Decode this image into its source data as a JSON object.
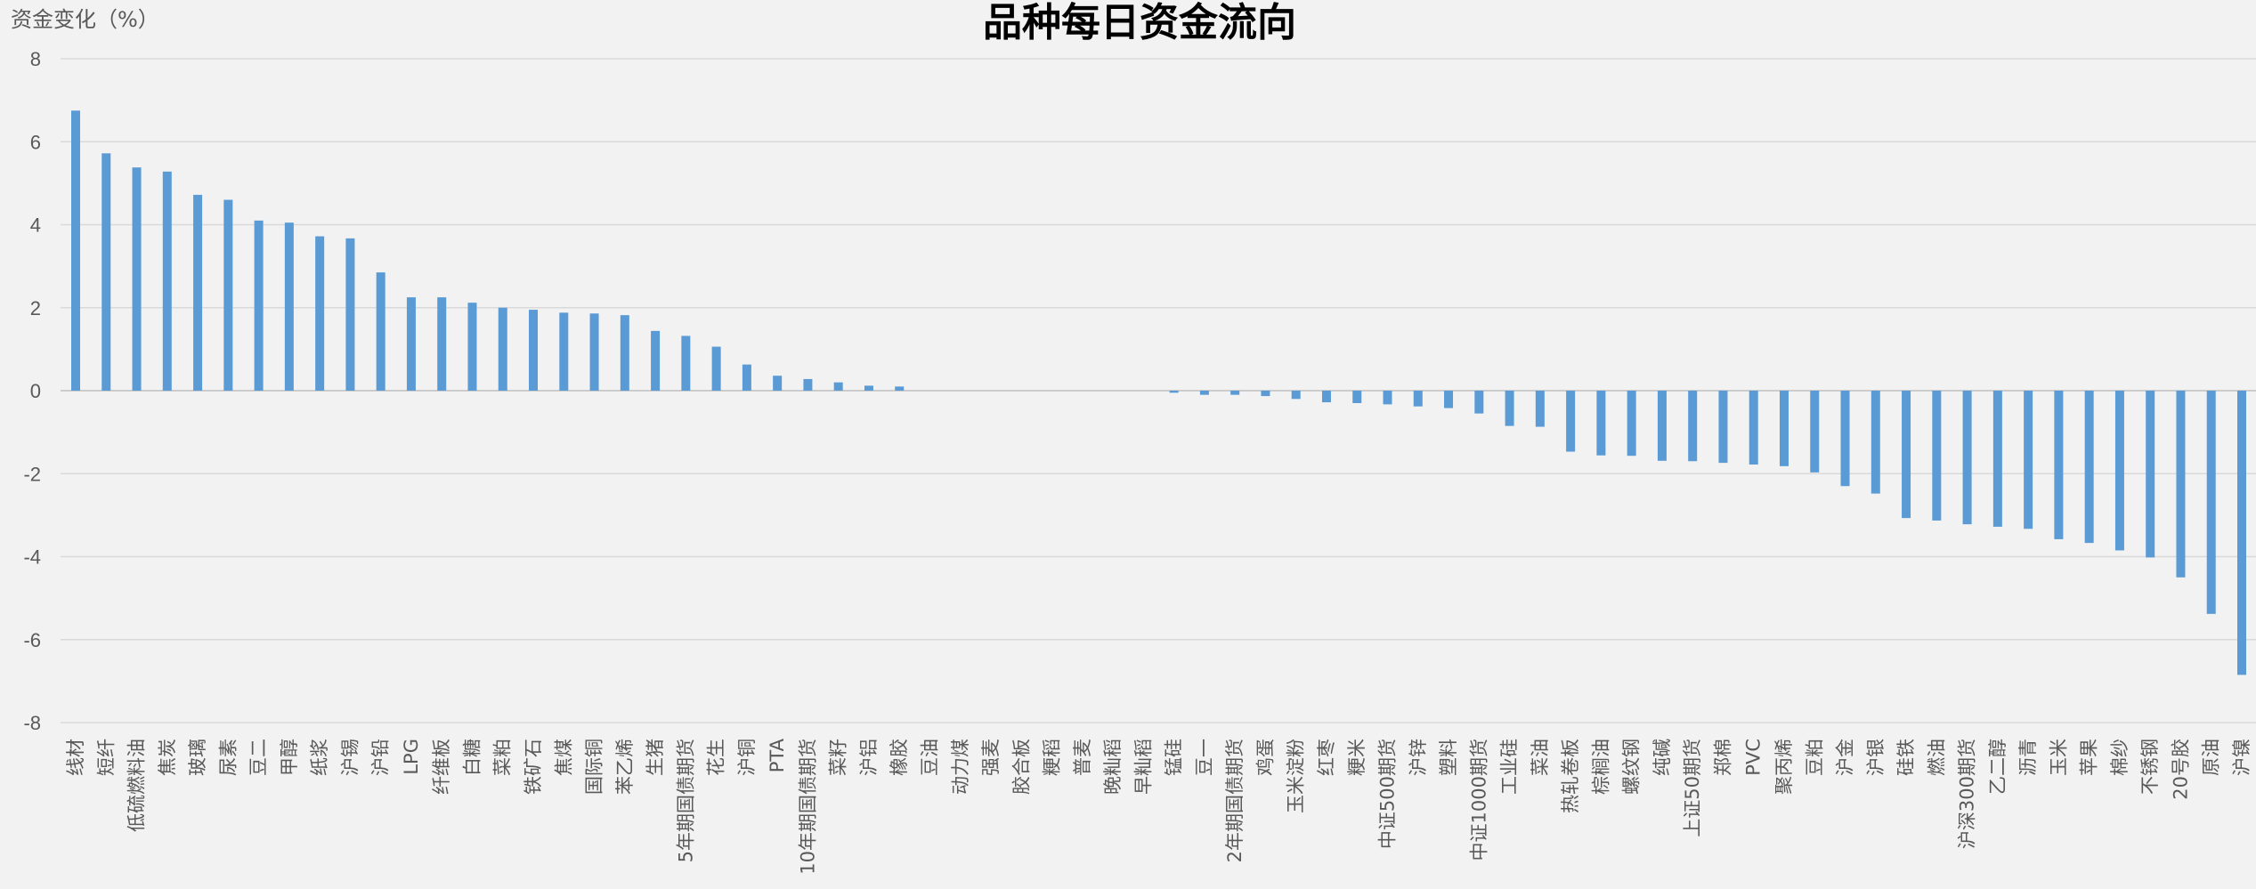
{
  "chart_data": {
    "type": "bar",
    "title": "品种每日资金流向",
    "ylabel": "资金变化（%）",
    "ylim": [
      -8,
      8
    ],
    "yticks": [
      8,
      6,
      4,
      2,
      0,
      -2,
      -4,
      -6,
      -8
    ],
    "grid": true,
    "colors": {
      "bar": "#5b9bd5",
      "background": "#f2f2f2"
    },
    "categories": [
      "线材",
      "短纤",
      "低硫燃料油",
      "焦炭",
      "玻璃",
      "尿素",
      "豆二",
      "甲醇",
      "纸浆",
      "沪锡",
      "沪铅",
      "LPG",
      "纤维板",
      "白糖",
      "菜粕",
      "铁矿石",
      "焦煤",
      "国际铜",
      "苯乙烯",
      "生猪",
      "5年期国债期货",
      "花生",
      "沪铜",
      "PTA",
      "10年期国债期货",
      "菜籽",
      "沪铝",
      "橡胶",
      "豆油",
      "动力煤",
      "强麦",
      "胶合板",
      "粳稻",
      "普麦",
      "晚籼稻",
      "早籼稻",
      "锰硅",
      "豆一",
      "2年期国债期货",
      "鸡蛋",
      "玉米淀粉",
      "红枣",
      "粳米",
      "中证500期货",
      "沪锌",
      "塑料",
      "中证1000期货",
      "工业硅",
      "菜油",
      "热轧卷板",
      "棕榈油",
      "螺纹钢",
      "纯碱",
      "上证50期货",
      "郑棉",
      "PVC",
      "聚丙烯",
      "豆粕",
      "沪金",
      "沪银",
      "硅铁",
      "燃油",
      "沪深300期货",
      "乙二醇",
      "沥青",
      "玉米",
      "苹果",
      "棉纱",
      "不锈钢",
      "20号胶",
      "原油",
      "沪镍"
    ],
    "values": [
      6.75,
      5.72,
      5.38,
      5.28,
      4.72,
      4.6,
      4.1,
      4.05,
      3.72,
      3.67,
      2.85,
      2.25,
      2.25,
      2.12,
      2.0,
      1.95,
      1.88,
      1.86,
      1.82,
      1.44,
      1.32,
      1.06,
      0.63,
      0.36,
      0.28,
      0.2,
      0.12,
      0.1,
      0.0,
      0.0,
      0.0,
      0.0,
      0.0,
      0.0,
      0.0,
      0.0,
      -0.05,
      -0.1,
      -0.1,
      -0.13,
      -0.2,
      -0.28,
      -0.3,
      -0.33,
      -0.38,
      -0.42,
      -0.55,
      -0.85,
      -0.87,
      -1.47,
      -1.56,
      -1.57,
      -1.69,
      -1.7,
      -1.74,
      -1.78,
      -1.82,
      -1.97,
      -2.3,
      -2.48,
      -3.07,
      -3.13,
      -3.22,
      -3.28,
      -3.33,
      -3.58,
      -3.67,
      -3.85,
      -4.02,
      -4.5,
      -5.38,
      -6.85
    ]
  }
}
